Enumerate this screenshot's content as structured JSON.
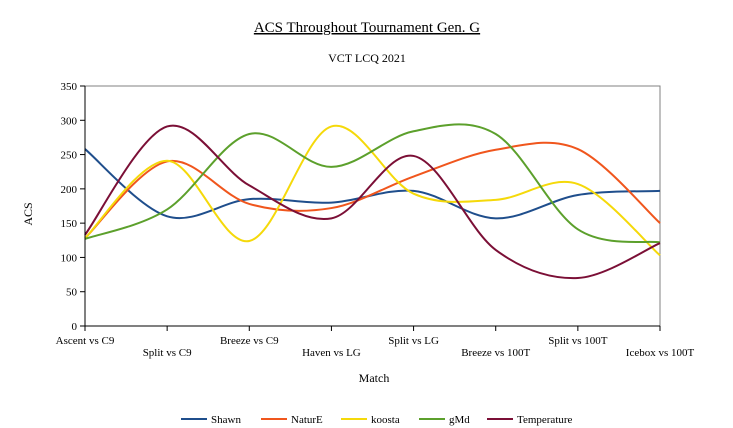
{
  "chart_data": {
    "type": "line",
    "title": "ACS Throughout Tournament Gen. G",
    "subtitle": "VCT LCQ 2021",
    "xlabel": "Match",
    "ylabel": "ACS",
    "ylim": [
      0,
      350
    ],
    "yticks": [
      0,
      50,
      100,
      150,
      200,
      250,
      300,
      350
    ],
    "grid": false,
    "legend_position": "bottom",
    "smooth": true,
    "categories": [
      "Ascent vs C9",
      "Split vs C9",
      "Breeze vs C9",
      "Haven vs LG",
      "Split vs LG",
      "Breeze vs 100T",
      "Split vs 100T",
      "Icebox vs 100T"
    ],
    "series": [
      {
        "name": "Shawn",
        "color": "#1f4e8c",
        "values": [
          258,
          160,
          185,
          180,
          197,
          157,
          191,
          197
        ]
      },
      {
        "name": "NaturE",
        "color": "#f0561d",
        "values": [
          128,
          240,
          178,
          172,
          218,
          257,
          258,
          150
        ]
      },
      {
        "name": "koosta",
        "color": "#f5d90a",
        "values": [
          128,
          241,
          124,
          291,
          193,
          184,
          207,
          103
        ]
      },
      {
        "name": "gMd",
        "color": "#5ca02c",
        "values": [
          127,
          170,
          280,
          232,
          284,
          280,
          141,
          122
        ]
      },
      {
        "name": "Temperature",
        "color": "#7b0f36",
        "values": [
          133,
          291,
          205,
          157,
          248,
          111,
          70,
          121
        ]
      }
    ]
  }
}
